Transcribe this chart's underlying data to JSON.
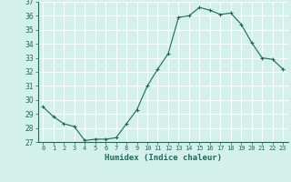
{
  "x": [
    0,
    1,
    2,
    3,
    4,
    5,
    6,
    7,
    8,
    9,
    10,
    11,
    12,
    13,
    14,
    15,
    16,
    17,
    18,
    19,
    20,
    21,
    22,
    23
  ],
  "y": [
    29.5,
    28.8,
    28.3,
    28.1,
    27.1,
    27.2,
    27.2,
    27.3,
    28.3,
    29.3,
    31.0,
    32.2,
    33.3,
    35.9,
    36.0,
    36.6,
    36.4,
    36.1,
    36.2,
    35.4,
    34.1,
    33.0,
    32.9,
    32.2
  ],
  "line_color": "#1a6b5a",
  "marker": "+",
  "marker_size": 3,
  "bg_color": "#d4f0eb",
  "grid_color": "#ffffff",
  "xlabel": "Humidex (Indice chaleur)",
  "ylim": [
    27,
    37
  ],
  "xlim": [
    -0.5,
    23.5
  ],
  "yticks": [
    27,
    28,
    29,
    30,
    31,
    32,
    33,
    34,
    35,
    36,
    37
  ],
  "xtick_labels": [
    "0",
    "1",
    "2",
    "3",
    "4",
    "5",
    "6",
    "7",
    "8",
    "9",
    "10",
    "11",
    "12",
    "13",
    "14",
    "15",
    "16",
    "17",
    "18",
    "19",
    "20",
    "21",
    "22",
    "23"
  ],
  "tick_color": "#1a6b5a",
  "label_color": "#1a6b5a",
  "spine_color": "#1a6b5a"
}
